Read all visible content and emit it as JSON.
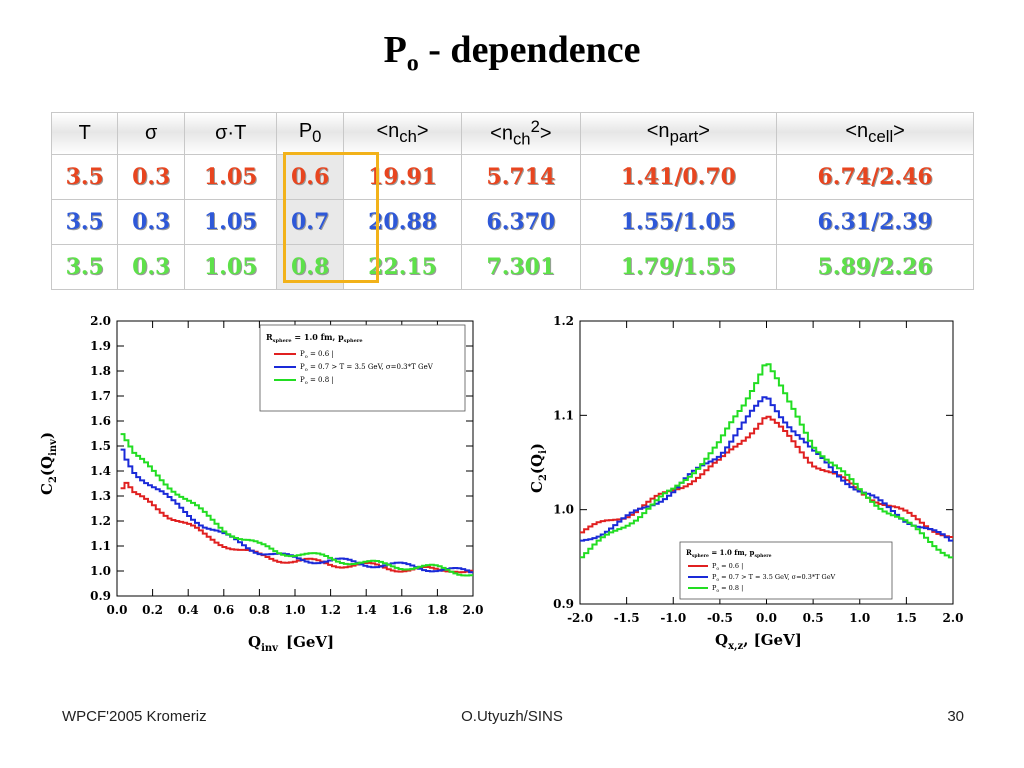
{
  "slide": {
    "title_main": "P",
    "title_sub": "o",
    "title_rest": " - dependence",
    "footer_left": "WPCF'2005 Kromeriz",
    "footer_center": "O.Utyuzh/SINS",
    "footer_right": "30"
  },
  "table": {
    "headers": [
      {
        "main": "T",
        "sub": "",
        "sup": "",
        "tail": ""
      },
      {
        "main": "σ",
        "sub": "",
        "sup": "",
        "tail": ""
      },
      {
        "main": "σ·T",
        "sub": "",
        "sup": "",
        "tail": ""
      },
      {
        "main": "P",
        "sub": "0",
        "sup": "",
        "tail": ""
      },
      {
        "main": "<n",
        "sub": "ch",
        "sup": "",
        "tail": ">"
      },
      {
        "main": "<n",
        "sub": "ch",
        "sup": "2",
        "tail": ">"
      },
      {
        "main": "<n",
        "sub": "part",
        "sup": "",
        "tail": ">"
      },
      {
        "main": "<n",
        "sub": "cell",
        "sup": "",
        "tail": ">"
      }
    ],
    "rows": [
      [
        "3.5",
        "0.3",
        "1.05",
        "0.6",
        "19.91",
        "5.714",
        "1.41/0.70",
        "6.74/2.46"
      ],
      [
        "3.5",
        "0.3",
        "1.05",
        "0.7",
        "20.88",
        "6.370",
        "1.55/1.05",
        "6.31/2.39"
      ],
      [
        "3.5",
        "0.3",
        "1.05",
        "0.8",
        "22.15",
        "7.301",
        "1.79/1.55",
        "5.89/2.26"
      ]
    ],
    "row_colors": [
      "#e8451f",
      "#2e58d8",
      "#5ee14a"
    ],
    "highlight_color": "#f2b21a"
  },
  "legend": {
    "title_R": "R",
    "title_R_sub": "sphere",
    "title_mid": " =  1.0 fm, p",
    "title_p_sub": "sphere",
    "entries": [
      {
        "lab": "P",
        "sub": "o",
        "rest": " = 0.6 |",
        "color": "#e02020"
      },
      {
        "lab": "P",
        "sub": "o",
        "rest": " = 0.7  > T = 3.5 GeV, σ=0.3*T GeV",
        "color": "#1a2ad8"
      },
      {
        "lab": "P",
        "sub": "o",
        "rest": " = 0.8 |",
        "color": "#22dd22"
      }
    ]
  },
  "chart_data": [
    {
      "type": "line",
      "title": "",
      "xlabel": "Q",
      "xlabel_sub": "inv",
      "xlabel_unit": "[GeV]",
      "ylabel": "C",
      "ylabel_sub1": "2",
      "ylabel_mid": "(Q",
      "ylabel_sub2": "inv",
      "ylabel_end": ")",
      "xlim": [
        0.0,
        2.0
      ],
      "ylim": [
        0.9,
        2.0
      ],
      "xticks": [
        "0.0",
        "0.2",
        "0.4",
        "0.6",
        "0.8",
        "1.0",
        "1.2",
        "1.4",
        "1.6",
        "1.8",
        "2.0"
      ],
      "yticks": [
        "0.9",
        "1.0",
        "1.1",
        "1.2",
        "1.3",
        "1.4",
        "1.5",
        "1.6",
        "1.7",
        "1.8",
        "1.9",
        "2.0"
      ],
      "legend_position": "top-right",
      "series": [
        {
          "name": "P_o = 0.6",
          "color": "#e02020",
          "x": [
            0.02,
            0.05,
            0.1,
            0.2,
            0.3,
            0.4,
            0.5,
            0.6,
            0.7,
            0.8,
            0.9,
            1.0,
            1.2,
            1.4,
            1.6,
            1.8,
            1.9,
            2.0
          ],
          "y": [
            1.32,
            1.35,
            1.3,
            1.27,
            1.22,
            1.18,
            1.14,
            1.11,
            1.08,
            1.06,
            1.05,
            1.04,
            1.03,
            1.02,
            1.01,
            1.0,
            1.01,
            1.0
          ]
        },
        {
          "name": "P_o = 0.7",
          "color": "#1a2ad8",
          "x": [
            0.02,
            0.05,
            0.1,
            0.2,
            0.3,
            0.4,
            0.5,
            0.6,
            0.7,
            0.8,
            0.9,
            1.0,
            1.2,
            1.4,
            1.6,
            1.8,
            1.9,
            2.0
          ],
          "y": [
            1.5,
            1.45,
            1.4,
            1.34,
            1.28,
            1.23,
            1.18,
            1.14,
            1.11,
            1.08,
            1.06,
            1.05,
            1.04,
            1.03,
            1.02,
            1.01,
            1.0,
            0.99
          ]
        },
        {
          "name": "P_o = 0.8",
          "color": "#22dd22",
          "x": [
            0.02,
            0.05,
            0.1,
            0.2,
            0.3,
            0.4,
            0.5,
            0.6,
            0.7,
            0.8,
            0.9,
            1.0,
            1.2,
            1.4,
            1.6,
            1.8,
            1.9,
            2.0
          ],
          "y": [
            1.57,
            1.53,
            1.46,
            1.4,
            1.34,
            1.28,
            1.22,
            1.17,
            1.13,
            1.1,
            1.08,
            1.07,
            1.05,
            1.03,
            1.02,
            1.01,
            1.0,
            0.99
          ]
        }
      ]
    },
    {
      "type": "line",
      "title": "",
      "xlabel": "Q",
      "xlabel_sub": "x,z",
      "xlabel_unit": ",   [GeV]",
      "ylabel": "C",
      "ylabel_sub1": "2",
      "ylabel_mid": "(Q",
      "ylabel_sub2": "i",
      "ylabel_end": ")",
      "xlim": [
        -2.0,
        2.0
      ],
      "ylim": [
        0.9,
        1.2
      ],
      "xticks": [
        "-2.0",
        "-1.5",
        "-1.0",
        "-0.5",
        "0.0",
        "0.5",
        "1.0",
        "1.5",
        "2.0"
      ],
      "yticks": [
        "0.9",
        "1.0",
        "1.1",
        "1.2"
      ],
      "legend_position": "bottom-right",
      "series": [
        {
          "name": "P_o = 0.6",
          "color": "#e02020",
          "x": [
            -2.0,
            -1.5,
            -1.0,
            -0.5,
            -0.25,
            0.0,
            0.25,
            0.5,
            1.0,
            1.5,
            2.0
          ],
          "y": [
            0.975,
            0.995,
            1.02,
            1.05,
            1.075,
            1.1,
            1.075,
            1.05,
            1.02,
            0.995,
            0.97
          ]
        },
        {
          "name": "P_o = 0.7",
          "color": "#1a2ad8",
          "x": [
            -2.0,
            -1.5,
            -1.0,
            -0.5,
            -0.25,
            0.0,
            0.25,
            0.5,
            1.0,
            1.5,
            2.0
          ],
          "y": [
            0.965,
            0.99,
            1.02,
            1.06,
            1.09,
            1.12,
            1.09,
            1.06,
            1.02,
            0.99,
            0.965
          ]
        },
        {
          "name": "P_o = 0.8",
          "color": "#22dd22",
          "x": [
            -2.0,
            -1.5,
            -1.0,
            -0.5,
            -0.25,
            0.0,
            0.25,
            0.5,
            1.0,
            1.5,
            2.0
          ],
          "y": [
            0.95,
            0.985,
            1.02,
            1.07,
            1.11,
            1.16,
            1.11,
            1.07,
            1.02,
            0.985,
            0.95
          ]
        }
      ]
    }
  ]
}
